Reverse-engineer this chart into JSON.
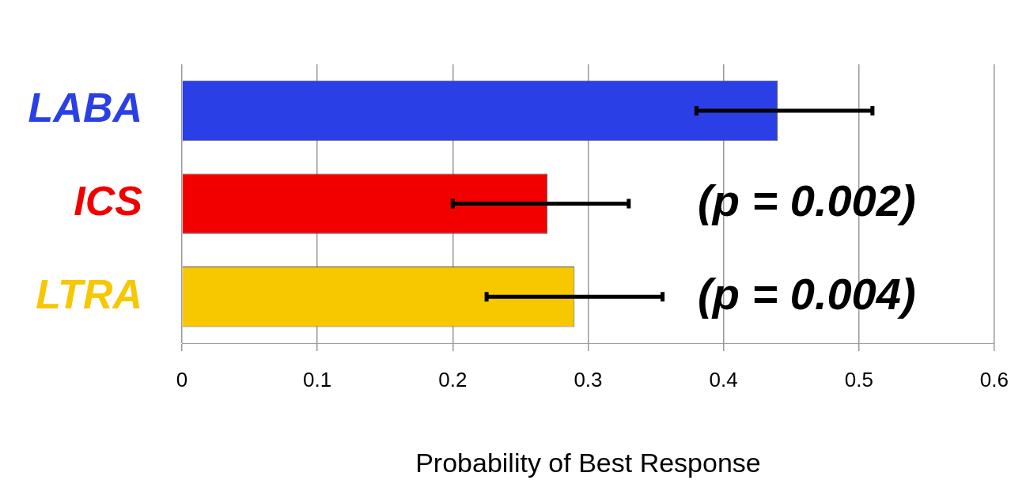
{
  "chart_data": {
    "type": "bar",
    "orientation": "horizontal",
    "xlabel": "Probability of Best Response",
    "categories": [
      "LABA",
      "ICS",
      "LTRA"
    ],
    "values": [
      0.44,
      0.27,
      0.29
    ],
    "colors": [
      "#2b3fe6",
      "#f20000",
      "#f7c700"
    ],
    "errors": [
      [
        0.38,
        0.51
      ],
      [
        0.2,
        0.33
      ],
      [
        0.225,
        0.355
      ]
    ],
    "xlim": [
      0,
      0.6
    ],
    "xticks": [
      0,
      0.1,
      0.2,
      0.3,
      0.4,
      0.5,
      0.6
    ],
    "grid": "x",
    "legend": false,
    "annotations": [
      "(p = 0.002)",
      "(p = 0.004)"
    ]
  }
}
